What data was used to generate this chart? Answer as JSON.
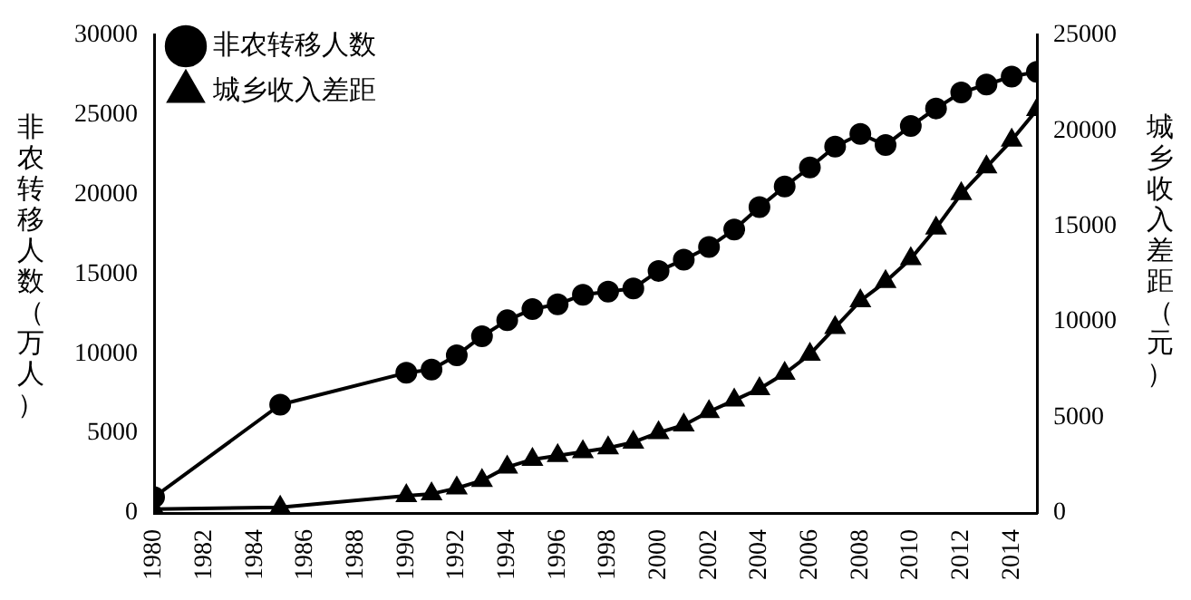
{
  "chart_data": {
    "type": "line",
    "ylabel": "非农转移人数（万人）",
    "y2label": "城乡收入差距（元）",
    "x": [
      1980,
      1985,
      1990,
      1991,
      1992,
      1993,
      1994,
      1995,
      1996,
      1997,
      1998,
      1999,
      2000,
      2001,
      2002,
      2003,
      2004,
      2005,
      2006,
      2007,
      2008,
      2009,
      2010,
      2011,
      2012,
      2013,
      2014,
      2015
    ],
    "series": [
      {
        "name": "非农转移人数",
        "color": "#000000",
        "marker": "circle",
        "values": [
          1000,
          6800,
          8800,
          9000,
          9900,
          11100,
          12100,
          12800,
          13100,
          13700,
          13900,
          14100,
          15200,
          15900,
          16700,
          17800,
          19200,
          20500,
          21700,
          23000,
          23800,
          23100,
          24300,
          25400,
          26400,
          26900,
          27400,
          27700
        ]
      },
      {
        "name": "城乡收入差距",
        "color": "#000000",
        "marker": "triangle",
        "axis": "y2",
        "values": [
          200,
          300,
          900,
          1000,
          1300,
          1700,
          2400,
          2800,
          3000,
          3200,
          3400,
          3700,
          4200,
          4600,
          5300,
          5900,
          6500,
          7300,
          8300,
          9700,
          11100,
          12100,
          13300,
          14900,
          16700,
          18100,
          19500,
          21100
        ]
      }
    ],
    "xlim": [
      1980,
      2015
    ],
    "xticks": [
      1980,
      1982,
      1984,
      1986,
      1988,
      1990,
      1992,
      1994,
      1996,
      1998,
      2000,
      2002,
      2004,
      2006,
      2008,
      2010,
      2012,
      2014
    ],
    "ylim": [
      0,
      30000
    ],
    "yticks": [
      0,
      5000,
      10000,
      15000,
      20000,
      25000,
      30000
    ],
    "y2lim": [
      0,
      25000
    ],
    "y2ticks": [
      0,
      5000,
      10000,
      15000,
      20000,
      25000
    ],
    "grid": false,
    "legend": "top left",
    "line_style": "solid"
  }
}
